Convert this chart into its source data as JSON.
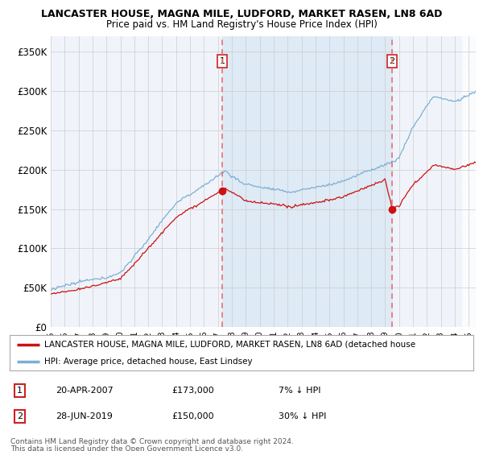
{
  "title1": "LANCASTER HOUSE, MAGNA MILE, LUDFORD, MARKET RASEN, LN8 6AD",
  "title2": "Price paid vs. HM Land Registry's House Price Index (HPI)",
  "ylabel_ticks": [
    "£0",
    "£50K",
    "£100K",
    "£150K",
    "£200K",
    "£250K",
    "£300K",
    "£350K"
  ],
  "ytick_vals": [
    0,
    50000,
    100000,
    150000,
    200000,
    250000,
    300000,
    350000
  ],
  "ylim": [
    0,
    370000
  ],
  "xlim_start": 1995,
  "xlim_end": 2025.5,
  "transaction1": {
    "label": "1",
    "date": "20-APR-2007",
    "price": 173000,
    "pct": "7%",
    "dir": "↓",
    "year": 2007.3
  },
  "transaction2": {
    "label": "2",
    "date": "28-JUN-2019",
    "price": 150000,
    "pct": "30%",
    "dir": "↓",
    "year": 2019.5
  },
  "legend_line1": "LANCASTER HOUSE, MAGNA MILE, LUDFORD, MARKET RASEN, LN8 6AD (detached house",
  "legend_line2": "HPI: Average price, detached house, East Lindsey",
  "footer1": "Contains HM Land Registry data © Crown copyright and database right 2024.",
  "footer2": "This data is licensed under the Open Government Licence v3.0.",
  "hpi_color": "#7bafd4",
  "price_color": "#cc1111",
  "dashed_color": "#e87070",
  "shaded_color": "#deeaf5",
  "background_color": "#f5f5f5",
  "plot_bg_color": "#f0f4fa",
  "grid_color": "#cccccc"
}
